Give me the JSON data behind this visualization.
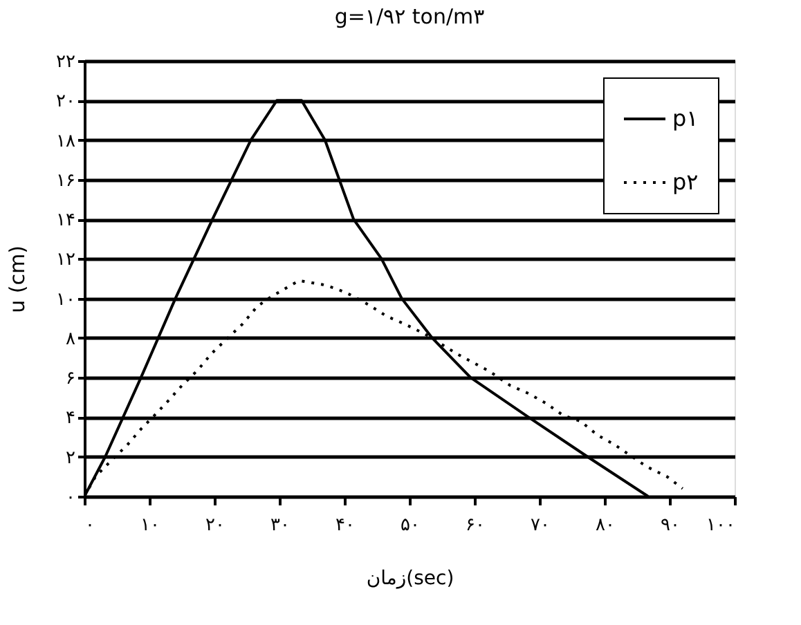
{
  "chart_data": {
    "type": "line",
    "title": "g=۱/۹۲ ton/m۳",
    "xlabel": "زمان(sec)",
    "ylabel": "u (cm)",
    "xlim": [
      0,
      100
    ],
    "ylim": [
      0,
      22
    ],
    "xticks": [
      {
        "value": 0,
        "label": "۰"
      },
      {
        "value": 10,
        "label": "۱۰"
      },
      {
        "value": 20,
        "label": "۲۰"
      },
      {
        "value": 30,
        "label": "۳۰"
      },
      {
        "value": 40,
        "label": "۴۰"
      },
      {
        "value": 50,
        "label": "۵۰"
      },
      {
        "value": 60,
        "label": "۶۰"
      },
      {
        "value": 70,
        "label": "۷۰"
      },
      {
        "value": 80,
        "label": "۸۰"
      },
      {
        "value": 90,
        "label": "۹۰"
      },
      {
        "value": 100,
        "label": "۱۰۰"
      }
    ],
    "yticks": [
      {
        "value": 0,
        "label": "۰"
      },
      {
        "value": 2,
        "label": "۲"
      },
      {
        "value": 4,
        "label": "۴"
      },
      {
        "value": 6,
        "label": "۶"
      },
      {
        "value": 8,
        "label": "۸"
      },
      {
        "value": 10,
        "label": "۱۰"
      },
      {
        "value": 12,
        "label": "۱۲"
      },
      {
        "value": 14,
        "label": "۱۴"
      },
      {
        "value": 16,
        "label": "۱۶"
      },
      {
        "value": 18,
        "label": "۱۸"
      },
      {
        "value": 20,
        "label": "۲۰"
      },
      {
        "value": 22,
        "label": "۲۲"
      }
    ],
    "grid": "y",
    "legend": "top right",
    "marker": "none",
    "series": [
      {
        "name": "p۱",
        "color": "#000000",
        "line_style": "solid",
        "x": [
          0,
          3.2,
          8.7,
          14,
          19.7,
          25.6,
          29.6,
          33.4,
          37,
          41.4,
          45.7,
          48.8,
          53.5,
          59.4,
          68.3,
          77.4,
          86.7
        ],
        "values": [
          0,
          2,
          6,
          10,
          14,
          18,
          20,
          20,
          18,
          14,
          12,
          10,
          8,
          6,
          4,
          2,
          0
        ]
      },
      {
        "name": "p۲",
        "color": "#000000",
        "line_style": "dotted",
        "x": [
          0,
          1.7,
          4.4,
          6.6,
          8.7,
          10.8,
          13.1,
          15,
          17.5,
          19.5,
          24.3,
          26.6,
          28.8,
          33,
          36.6,
          38.7,
          40.8,
          43.6,
          46.5,
          49.3,
          52.4,
          57.3,
          62.4,
          65.5,
          68.3,
          71,
          73.6,
          76.3,
          78.9,
          81.6,
          86.5,
          89.6,
          92
        ],
        "values": [
          0,
          1.0,
          1.9,
          2.6,
          3.4,
          4.1,
          4.9,
          5.6,
          6.4,
          7.2,
          8.7,
          9.6,
          10.1,
          10.9,
          10.7,
          10.5,
          10.2,
          9.7,
          9.1,
          8.7,
          8.2,
          7.2,
          6.3,
          5.6,
          5.2,
          4.7,
          4.1,
          3.8,
          3.1,
          2.6,
          1.5,
          1.0,
          0.4
        ]
      }
    ]
  }
}
